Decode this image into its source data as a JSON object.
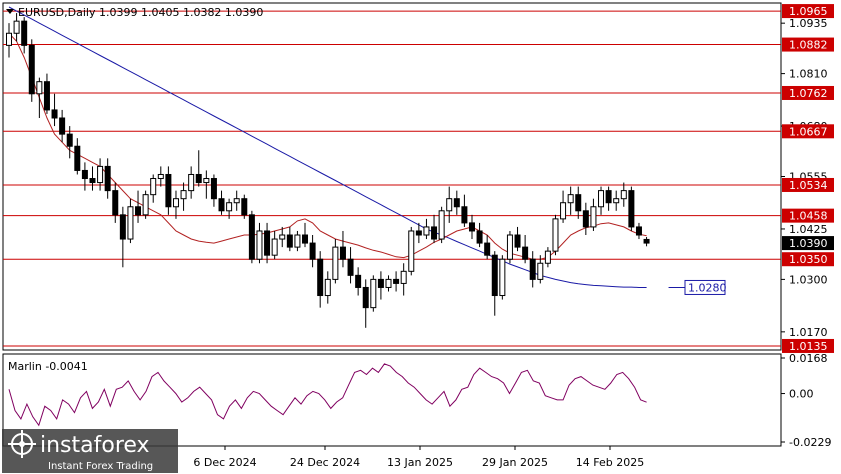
{
  "header": {
    "symbol_line": "EURUSD,Daily  1.0399 1.0405 1.0382 1.0390",
    "dropdown_icon": "triangle-down-icon"
  },
  "indicator": {
    "label": "Marlin -0.0041",
    "ticks": [
      "0.0168",
      "0.00",
      "-0.0229"
    ]
  },
  "price_axis": {
    "ticks": [
      "1.0935",
      "1.0810",
      "1.0680",
      "1.0555",
      "1.0425",
      "1.0300",
      "1.0170"
    ]
  },
  "levels": [
    {
      "value": "1.0965"
    },
    {
      "value": "1.0882"
    },
    {
      "value": "1.0762"
    },
    {
      "value": "1.0667"
    },
    {
      "value": "1.0534"
    },
    {
      "value": "1.0458"
    },
    {
      "value": "1.0350"
    },
    {
      "value": "1.0135"
    }
  ],
  "current_price": "1.0390",
  "ma_label": "1.0280",
  "time_axis": [
    "6 Dec 2024",
    "24 Dec 2024",
    "13 Jan 2025",
    "29 Jan 2025",
    "14 Feb 2025"
  ],
  "watermark": {
    "brand": "instaforex",
    "tagline": "Instant Forex Trading"
  },
  "colors": {
    "level": "#cc0000",
    "ma_slow": "#1a1aa6",
    "ma_fast": "#b22222",
    "oscillator": "#800060",
    "candle": "#000000"
  },
  "chart_data": {
    "type": "candlestick",
    "title": "EURUSD,Daily",
    "ylim": [
      1.0125,
      1.0985
    ],
    "last_ohlc": {
      "open": 1.0399,
      "high": 1.0405,
      "low": 1.0382,
      "close": 1.039
    },
    "horizontal_levels": [
      1.0965,
      1.0882,
      1.0762,
      1.0667,
      1.0534,
      1.0458,
      1.035,
      1.0135
    ],
    "ma_slow_end": 1.028,
    "candles": [
      [
        1.088,
        1.0935,
        1.085,
        1.091
      ],
      [
        1.091,
        1.096,
        1.089,
        1.094
      ],
      [
        1.094,
        1.095,
        1.086,
        1.088
      ],
      [
        1.088,
        1.0895,
        1.074,
        1.076
      ],
      [
        1.076,
        1.08,
        1.07,
        1.079
      ],
      [
        1.079,
        1.081,
        1.071,
        1.072
      ],
      [
        1.072,
        1.076,
        1.068,
        1.07
      ],
      [
        1.07,
        1.072,
        1.064,
        1.066
      ],
      [
        1.066,
        1.068,
        1.06,
        1.063
      ],
      [
        1.063,
        1.065,
        1.056,
        1.057
      ],
      [
        1.057,
        1.059,
        1.052,
        1.055
      ],
      [
        1.055,
        1.058,
        1.052,
        1.054
      ],
      [
        1.054,
        1.06,
        1.052,
        1.058
      ],
      [
        1.058,
        1.06,
        1.05,
        1.052
      ],
      [
        1.052,
        1.054,
        1.044,
        1.046
      ],
      [
        1.046,
        1.048,
        1.033,
        1.04
      ],
      [
        1.04,
        1.05,
        1.039,
        1.048
      ],
      [
        1.048,
        1.052,
        1.044,
        1.046
      ],
      [
        1.046,
        1.052,
        1.045,
        1.051
      ],
      [
        1.051,
        1.056,
        1.049,
        1.055
      ],
      [
        1.055,
        1.058,
        1.053,
        1.056
      ],
      [
        1.056,
        1.058,
        1.046,
        1.048
      ],
      [
        1.048,
        1.052,
        1.045,
        1.05
      ],
      [
        1.05,
        1.054,
        1.047,
        1.052
      ],
      [
        1.052,
        1.058,
        1.05,
        1.056
      ],
      [
        1.056,
        1.062,
        1.053,
        1.054
      ],
      [
        1.054,
        1.057,
        1.05,
        1.055
      ],
      [
        1.055,
        1.056,
        1.048,
        1.05
      ],
      [
        1.05,
        1.052,
        1.046,
        1.047
      ],
      [
        1.047,
        1.05,
        1.045,
        1.049
      ],
      [
        1.049,
        1.052,
        1.047,
        1.05
      ],
      [
        1.05,
        1.051,
        1.045,
        1.046
      ],
      [
        1.046,
        1.047,
        1.034,
        1.035
      ],
      [
        1.035,
        1.044,
        1.034,
        1.042
      ],
      [
        1.042,
        1.044,
        1.034,
        1.036
      ],
      [
        1.036,
        1.042,
        1.035,
        1.04
      ],
      [
        1.04,
        1.043,
        1.038,
        1.041
      ],
      [
        1.041,
        1.043,
        1.037,
        1.038
      ],
      [
        1.038,
        1.042,
        1.037,
        1.041
      ],
      [
        1.041,
        1.044,
        1.038,
        1.039
      ],
      [
        1.039,
        1.041,
        1.033,
        1.035
      ],
      [
        1.035,
        1.037,
        1.023,
        1.026
      ],
      [
        1.026,
        1.032,
        1.024,
        1.03
      ],
      [
        1.03,
        1.04,
        1.029,
        1.038
      ],
      [
        1.038,
        1.042,
        1.033,
        1.035
      ],
      [
        1.035,
        1.038,
        1.029,
        1.031
      ],
      [
        1.031,
        1.033,
        1.026,
        1.028
      ],
      [
        1.028,
        1.03,
        1.018,
        1.023
      ],
      [
        1.023,
        1.031,
        1.022,
        1.03
      ],
      [
        1.03,
        1.032,
        1.025,
        1.028
      ],
      [
        1.028,
        1.031,
        1.027,
        1.03
      ],
      [
        1.03,
        1.032,
        1.027,
        1.029
      ],
      [
        1.029,
        1.034,
        1.026,
        1.032
      ],
      [
        1.032,
        1.043,
        1.031,
        1.042
      ],
      [
        1.042,
        1.044,
        1.039,
        1.041
      ],
      [
        1.041,
        1.045,
        1.04,
        1.043
      ],
      [
        1.043,
        1.046,
        1.039,
        1.04
      ],
      [
        1.04,
        1.048,
        1.039,
        1.047
      ],
      [
        1.047,
        1.053,
        1.044,
        1.05
      ],
      [
        1.05,
        1.052,
        1.046,
        1.048
      ],
      [
        1.048,
        1.051,
        1.043,
        1.044
      ],
      [
        1.044,
        1.046,
        1.04,
        1.042
      ],
      [
        1.042,
        1.044,
        1.038,
        1.039
      ],
      [
        1.039,
        1.041,
        1.035,
        1.036
      ],
      [
        1.036,
        1.037,
        1.021,
        1.026
      ],
      [
        1.026,
        1.036,
        1.025,
        1.035
      ],
      [
        1.035,
        1.042,
        1.034,
        1.041
      ],
      [
        1.041,
        1.043,
        1.037,
        1.038
      ],
      [
        1.038,
        1.041,
        1.034,
        1.035
      ],
      [
        1.035,
        1.037,
        1.028,
        1.03
      ],
      [
        1.03,
        1.036,
        1.029,
        1.034
      ],
      [
        1.034,
        1.038,
        1.033,
        1.037
      ],
      [
        1.037,
        1.046,
        1.036,
        1.045
      ],
      [
        1.045,
        1.052,
        1.044,
        1.049
      ],
      [
        1.049,
        1.053,
        1.046,
        1.051
      ],
      [
        1.051,
        1.053,
        1.045,
        1.047
      ],
      [
        1.047,
        1.049,
        1.041,
        1.043
      ],
      [
        1.043,
        1.05,
        1.042,
        1.048
      ],
      [
        1.048,
        1.053,
        1.046,
        1.052
      ],
      [
        1.052,
        1.053,
        1.047,
        1.049
      ],
      [
        1.049,
        1.052,
        1.047,
        1.05
      ],
      [
        1.05,
        1.054,
        1.048,
        1.052
      ],
      [
        1.052,
        1.053,
        1.042,
        1.043
      ],
      [
        1.043,
        1.044,
        1.04,
        1.041
      ],
      [
        1.0399,
        1.0405,
        1.0382,
        1.039
      ]
    ],
    "ma_fast": [
      1.091,
      1.089,
      1.085,
      1.08,
      1.075,
      1.07,
      1.066,
      1.064,
      1.062,
      1.061,
      1.06,
      1.059,
      1.058,
      1.056,
      1.054,
      1.052,
      1.05,
      1.049,
      1.048,
      1.047,
      1.046,
      1.044,
      1.042,
      1.041,
      1.04,
      1.0395,
      1.0392,
      1.039,
      1.0395,
      1.04,
      1.0405,
      1.041,
      1.041,
      1.0412,
      1.0415,
      1.042,
      1.0425,
      1.043,
      1.0445,
      1.045,
      1.044,
      1.042,
      1.041,
      1.04,
      1.0395,
      1.039,
      1.0385,
      1.0378,
      1.0372,
      1.0368,
      1.0362,
      1.0356,
      1.0354,
      1.036,
      1.037,
      1.038,
      1.0392,
      1.04,
      1.041,
      1.042,
      1.0425,
      1.043,
      1.042,
      1.041,
      1.039,
      1.0375,
      1.0365,
      1.036,
      1.0355,
      1.035,
      1.035,
      1.0355,
      1.037,
      1.039,
      1.041,
      1.042,
      1.0428,
      1.0432,
      1.0438,
      1.044,
      1.0435,
      1.043,
      1.042,
      1.0412,
      1.0408
    ],
    "ma_slow": [
      1.0975,
      1.0965,
      1.0955,
      1.0945,
      1.0935,
      1.0925,
      1.0915,
      1.0905,
      1.0895,
      1.0885,
      1.0875,
      1.0865,
      1.0855,
      1.0845,
      1.0835,
      1.0825,
      1.0815,
      1.0805,
      1.0795,
      1.0785,
      1.0775,
      1.0765,
      1.0755,
      1.0745,
      1.0735,
      1.0725,
      1.0715,
      1.0705,
      1.0695,
      1.0685,
      1.0675,
      1.0665,
      1.0655,
      1.0645,
      1.0635,
      1.0625,
      1.0615,
      1.0605,
      1.0595,
      1.0585,
      1.0575,
      1.0565,
      1.0555,
      1.0545,
      1.0535,
      1.0525,
      1.0515,
      1.0505,
      1.0495,
      1.0485,
      1.0475,
      1.0465,
      1.0455,
      1.0445,
      1.0435,
      1.0425,
      1.0417,
      1.041,
      1.0402,
      1.0394,
      1.0386,
      1.0378,
      1.037,
      1.0362,
      1.0354,
      1.0346,
      1.0338,
      1.0331,
      1.0324,
      1.0317,
      1.031,
      1.0305,
      1.03,
      1.0296,
      1.0292,
      1.0289,
      1.0287,
      1.0285,
      1.0284,
      1.0283,
      1.0282,
      1.0281,
      1.0281,
      1.028,
      1.028
    ],
    "oscillator": {
      "ylim": [
        -0.0229,
        0.0168
      ],
      "values": [
        0.002,
        -0.008,
        -0.012,
        -0.005,
        -0.011,
        -0.015,
        -0.006,
        -0.008,
        -0.012,
        -0.003,
        -0.005,
        -0.009,
        -0.002,
        0.001,
        -0.007,
        -0.004,
        0.002,
        -0.006,
        0.002,
        0.003,
        0.006,
        0.001,
        -0.003,
        0.001,
        0.008,
        0.01,
        0.006,
        0.003,
        0.0,
        -0.004,
        -0.002,
        0.001,
        0.003,
        0.0,
        -0.003,
        -0.01,
        -0.012,
        -0.006,
        -0.003,
        -0.007,
        -0.002,
        0.001,
        0.0,
        -0.003,
        -0.006,
        -0.008,
        -0.01,
        -0.006,
        -0.002,
        -0.005,
        -0.001,
        0.001,
        0.0,
        -0.003,
        -0.007,
        -0.004,
        -0.002,
        0.004,
        0.01,
        0.011,
        0.009,
        0.012,
        0.01,
        0.014,
        0.013,
        0.01,
        0.008,
        0.005,
        0.003,
        0.0,
        -0.003,
        -0.005,
        -0.002,
        0.001,
        -0.006,
        -0.003,
        0.002,
        0.003,
        0.009,
        0.012,
        0.01,
        0.008,
        0.007,
        0.005,
        0.0,
        0.005,
        0.01,
        0.011,
        0.006,
        0.005,
        -0.001,
        -0.002,
        -0.003,
        -0.003,
        0.004,
        0.007,
        0.008,
        0.006,
        0.004,
        0.003,
        0.002,
        0.005,
        0.009,
        0.01,
        0.007,
        0.003,
        -0.003,
        -0.0041
      ]
    }
  }
}
